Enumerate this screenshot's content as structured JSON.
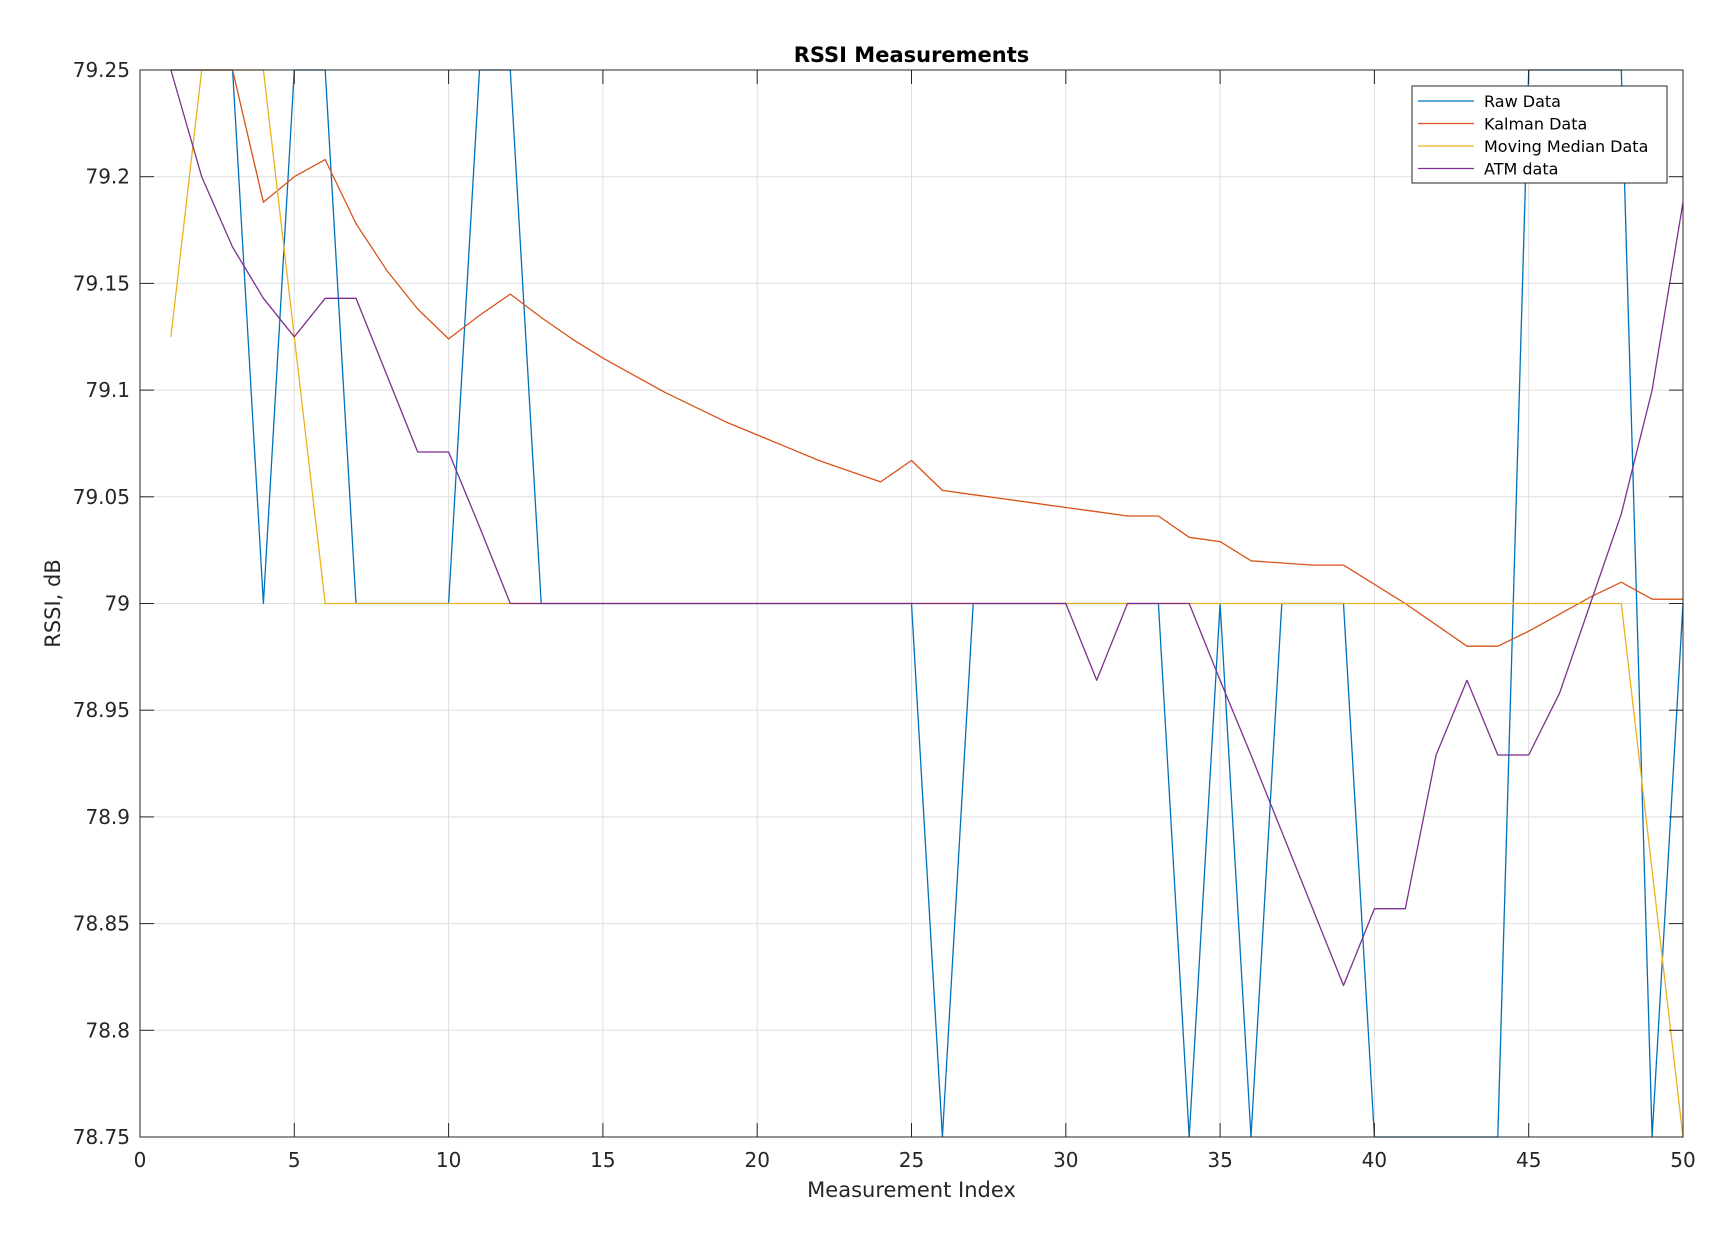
{
  "chart_data": {
    "type": "line",
    "title": "RSSI Measurements",
    "xlabel": "Measurement Index",
    "ylabel": "RSSI, dB",
    "xlim": [
      0,
      50
    ],
    "ylim": [
      78.75,
      79.25
    ],
    "grid": true,
    "legend_position": "top-right",
    "x_ticks": [
      "0",
      "5",
      "10",
      "15",
      "20",
      "25",
      "30",
      "35",
      "40",
      "45",
      "50"
    ],
    "y_ticks": [
      "79.25",
      "79.2",
      "79.15",
      "79.1",
      "79.05",
      "79",
      "78.95",
      "78.9",
      "78.85",
      "78.8",
      "78.75"
    ],
    "x": [
      1,
      2,
      3,
      4,
      5,
      6,
      7,
      8,
      9,
      10,
      11,
      12,
      13,
      14,
      15,
      16,
      17,
      18,
      19,
      20,
      21,
      22,
      23,
      24,
      25,
      26,
      27,
      28,
      29,
      30,
      31,
      32,
      33,
      34,
      35,
      36,
      37,
      38,
      39,
      40,
      41,
      42,
      43,
      44,
      45,
      46,
      47,
      48,
      49,
      50
    ],
    "series": [
      {
        "name": "Raw Data",
        "color": "#0072BD",
        "values": [
          79.25,
          79.25,
          79.25,
          79,
          79.25,
          79.25,
          79,
          79,
          79,
          79,
          79.25,
          79.25,
          79,
          79,
          79,
          79,
          79,
          79,
          79,
          79,
          79,
          79,
          79,
          79,
          79,
          78.75,
          79,
          79,
          79,
          79,
          79,
          79,
          79,
          78.75,
          79,
          78.75,
          79,
          79,
          79,
          78.75,
          78.75,
          78.75,
          78.75,
          78.75,
          79.25,
          79.25,
          79.25,
          79.25,
          78.75,
          79
        ]
      },
      {
        "name": "Kalman Data",
        "color": "#D95319",
        "values": [
          79.25,
          79.25,
          79.25,
          79.188,
          79.2,
          79.208,
          79.178,
          79.156,
          79.138,
          79.124,
          79.135,
          79.145,
          79.134,
          79.124,
          79.115,
          79.107,
          79.099,
          79.092,
          79.085,
          79.079,
          79.073,
          79.067,
          79.062,
          79.057,
          79.067,
          79.053,
          79.051,
          79.049,
          79.047,
          79.045,
          79.043,
          79.041,
          79.041,
          79.031,
          79.029,
          79.02,
          79.019,
          79.018,
          79.018,
          79.009,
          79.0,
          78.99,
          78.98,
          78.98,
          78.987,
          78.995,
          79.003,
          79.01,
          79.002,
          79.002
        ]
      },
      {
        "name": "Moving Median Data",
        "color": "#EDB120",
        "values": [
          79.125,
          79.25,
          79.25,
          79.25,
          79.125,
          79,
          79,
          79,
          79,
          79,
          79,
          79,
          79,
          79,
          79,
          79,
          79,
          79,
          79,
          79,
          79,
          79,
          79,
          79,
          79,
          79,
          79,
          79,
          79,
          79,
          79,
          79,
          79,
          79,
          79,
          79,
          79,
          79,
          79,
          79,
          79,
          79,
          79,
          79,
          79,
          79,
          79,
          79,
          78.875,
          78.75
        ]
      },
      {
        "name": "ATM data",
        "color": "#7E2F8E",
        "values": [
          79.25,
          79.2,
          79.167,
          79.143,
          79.125,
          79.143,
          79.143,
          79.107,
          79.071,
          79.071,
          79.036,
          79,
          79,
          79,
          79,
          79,
          79,
          79,
          79,
          79,
          79,
          79,
          79,
          79,
          79,
          79,
          79,
          79,
          79,
          79,
          78.964,
          79,
          79,
          79,
          78.964,
          78.929,
          78.893,
          78.857,
          78.821,
          78.857,
          78.857,
          78.929,
          78.964,
          78.929,
          78.929,
          78.958,
          79,
          79.042,
          79.1,
          79.188
        ]
      }
    ]
  }
}
